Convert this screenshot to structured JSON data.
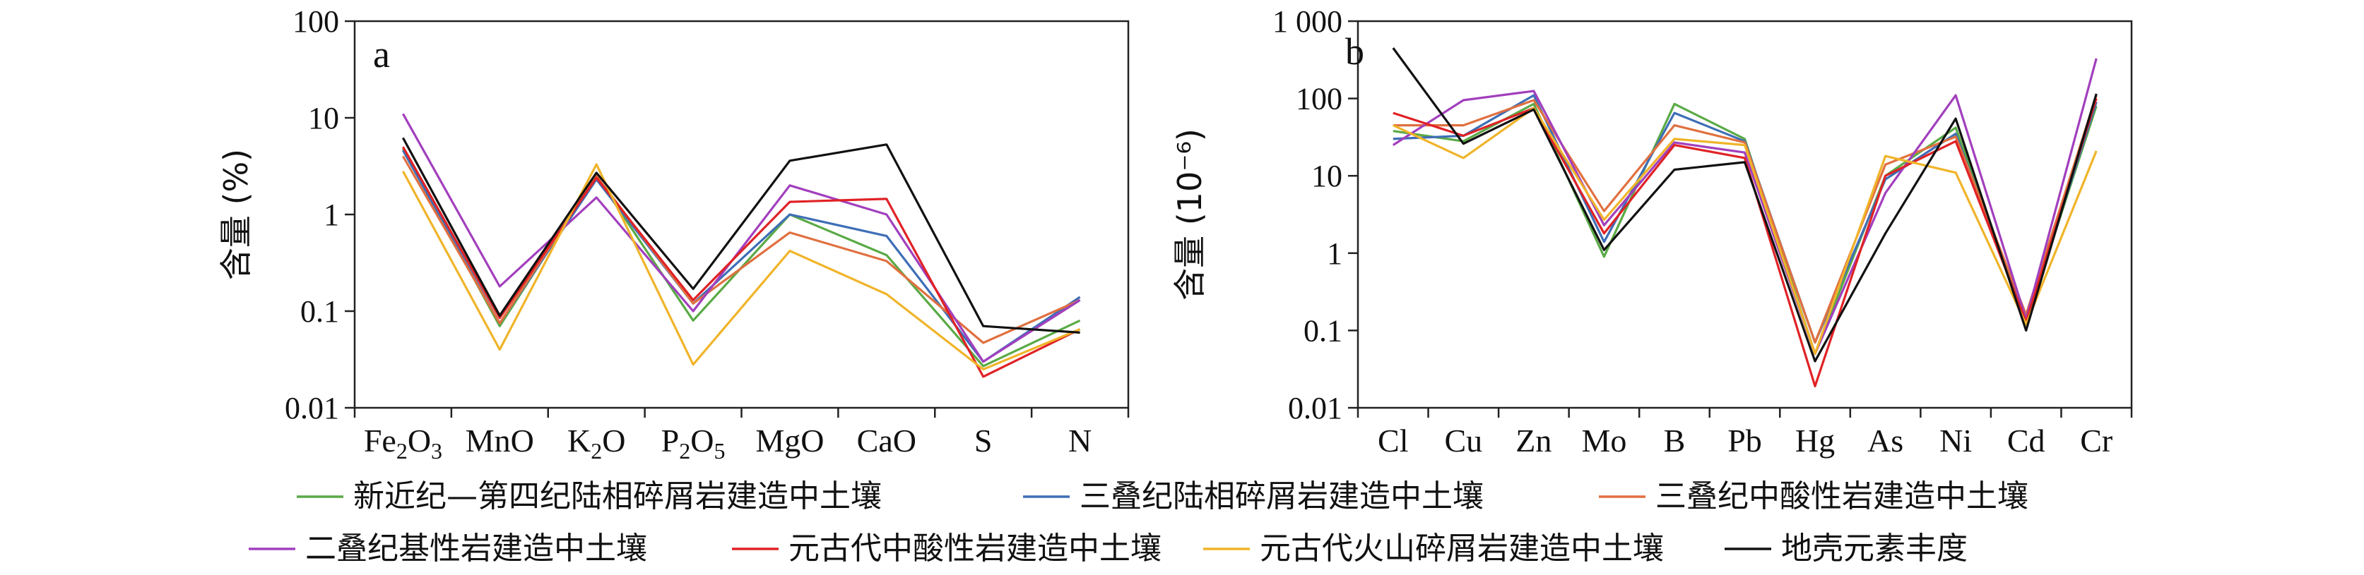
{
  "chart_data": [
    {
      "type": "line",
      "panel": "a",
      "ylabel": "含量 (%)",
      "yscale": "log",
      "ylim": [
        0.01,
        100
      ],
      "yticks": [
        "0.01",
        "0.1",
        "1",
        "10",
        "100"
      ],
      "categories": [
        "Fe2O3",
        "MnO",
        "K2O",
        "P2O5",
        "MgO",
        "CaO",
        "S",
        "N"
      ],
      "category_labels": [
        {
          "base": "Fe",
          "sub": "2",
          "base2": "O",
          "sub2": "3"
        },
        {
          "base": "MnO"
        },
        {
          "base": "K",
          "sub": "2",
          "base2": "O"
        },
        {
          "base": "P",
          "sub": "2",
          "base2": "O",
          "sub2": "5"
        },
        {
          "base": "MgO"
        },
        {
          "base": "CaO"
        },
        {
          "base": "S"
        },
        {
          "base": "N"
        }
      ],
      "series": [
        {
          "name": "新近纪—第四纪陆相碎屑岩建造中土壤",
          "color": "#5aaa46",
          "values": [
            4.8,
            0.07,
            2.5,
            0.08,
            1.0,
            0.38,
            0.027,
            0.08
          ]
        },
        {
          "name": "三叠纪陆相碎屑岩建造中土壤",
          "color": "#3e6eb6",
          "values": [
            4.6,
            0.075,
            2.3,
            0.12,
            1.0,
            0.6,
            0.03,
            0.14
          ]
        },
        {
          "name": "三叠纪中酸性岩建造中土壤",
          "color": "#e07040",
          "values": [
            4.0,
            0.075,
            2.5,
            0.12,
            0.65,
            0.33,
            0.047,
            0.13
          ]
        },
        {
          "name": "二叠纪基性岩建造中土壤",
          "color": "#a23fbd",
          "values": [
            11.0,
            0.18,
            1.5,
            0.1,
            2.0,
            1.0,
            0.03,
            0.13
          ]
        },
        {
          "name": "元古代中酸性岩建造中土壤",
          "color": "#e02226",
          "values": [
            5.0,
            0.085,
            2.4,
            0.13,
            1.35,
            1.45,
            0.021,
            0.065
          ]
        },
        {
          "name": "元古代火山碎屑岩建造中土壤",
          "color": "#f0b429",
          "values": [
            2.8,
            0.04,
            3.3,
            0.028,
            0.42,
            0.15,
            0.025,
            0.065
          ]
        },
        {
          "name": "地壳元素丰度",
          "color": "#111111",
          "values": [
            6.2,
            0.09,
            2.7,
            0.17,
            3.6,
            5.3,
            0.07,
            0.06
          ]
        }
      ]
    },
    {
      "type": "line",
      "panel": "b",
      "ylabel": "含量 (10⁻⁶)",
      "yscale": "log",
      "ylim": [
        0.01,
        1000
      ],
      "yticks": [
        "0.01",
        "0.1",
        "1",
        "10",
        "100",
        "1 000"
      ],
      "categories": [
        "Cl",
        "Cu",
        "Zn",
        "Mo",
        "B",
        "Pb",
        "Hg",
        "As",
        "Ni",
        "Cd",
        "Cr"
      ],
      "series": [
        {
          "name": "新近纪—第四纪陆相碎屑岩建造中土壤",
          "color": "#5aaa46",
          "values": [
            38,
            28,
            85,
            0.9,
            85,
            30,
            0.05,
            10,
            42,
            0.13,
            80
          ]
        },
        {
          "name": "三叠纪陆相碎屑岩建造中土壤",
          "color": "#3e6eb6",
          "values": [
            30,
            33,
            110,
            1.4,
            65,
            28,
            0.07,
            9,
            35,
            0.13,
            90
          ]
        },
        {
          "name": "三叠纪中酸性岩建造中土壤",
          "color": "#e07040",
          "values": [
            45,
            45,
            95,
            3.5,
            45,
            27,
            0.07,
            14,
            32,
            0.16,
            110
          ]
        },
        {
          "name": "二叠纪基性岩建造中土壤",
          "color": "#a23fbd",
          "values": [
            25,
            95,
            125,
            2.3,
            27,
            20,
            0.05,
            6,
            110,
            0.14,
            330
          ]
        },
        {
          "name": "元古代中酸性岩建造中土壤",
          "color": "#e02226",
          "values": [
            65,
            33,
            75,
            1.8,
            25,
            17,
            0.019,
            10,
            28,
            0.13,
            100
          ]
        },
        {
          "name": "元古代火山碎屑岩建造中土壤",
          "color": "#f0b429",
          "values": [
            45,
            17,
            75,
            2.7,
            30,
            25,
            0.05,
            18,
            11,
            0.12,
            21
          ]
        },
        {
          "name": "地壳元素丰度",
          "color": "#111111",
          "values": [
            450,
            26,
            72,
            1.1,
            12,
            15,
            0.04,
            1.8,
            55,
            0.1,
            115
          ]
        }
      ]
    }
  ],
  "legend": {
    "rows": [
      [
        {
          "label": "新近纪—第四纪陆相碎屑岩建造中土壤",
          "color": "#5aaa46"
        },
        {
          "label": "三叠纪陆相碎屑岩建造中土壤",
          "color": "#3e6eb6"
        },
        {
          "label": "三叠纪中酸性岩建造中土壤",
          "color": "#e07040"
        }
      ],
      [
        {
          "label": "二叠纪基性岩建造中土壤",
          "color": "#a23fbd"
        },
        {
          "label": "元古代中酸性岩建造中土壤",
          "color": "#e02226"
        },
        {
          "label": "元古代火山碎屑岩建造中土壤",
          "color": "#f0b429"
        },
        {
          "label": "地壳元素丰度",
          "color": "#111111"
        }
      ]
    ]
  }
}
